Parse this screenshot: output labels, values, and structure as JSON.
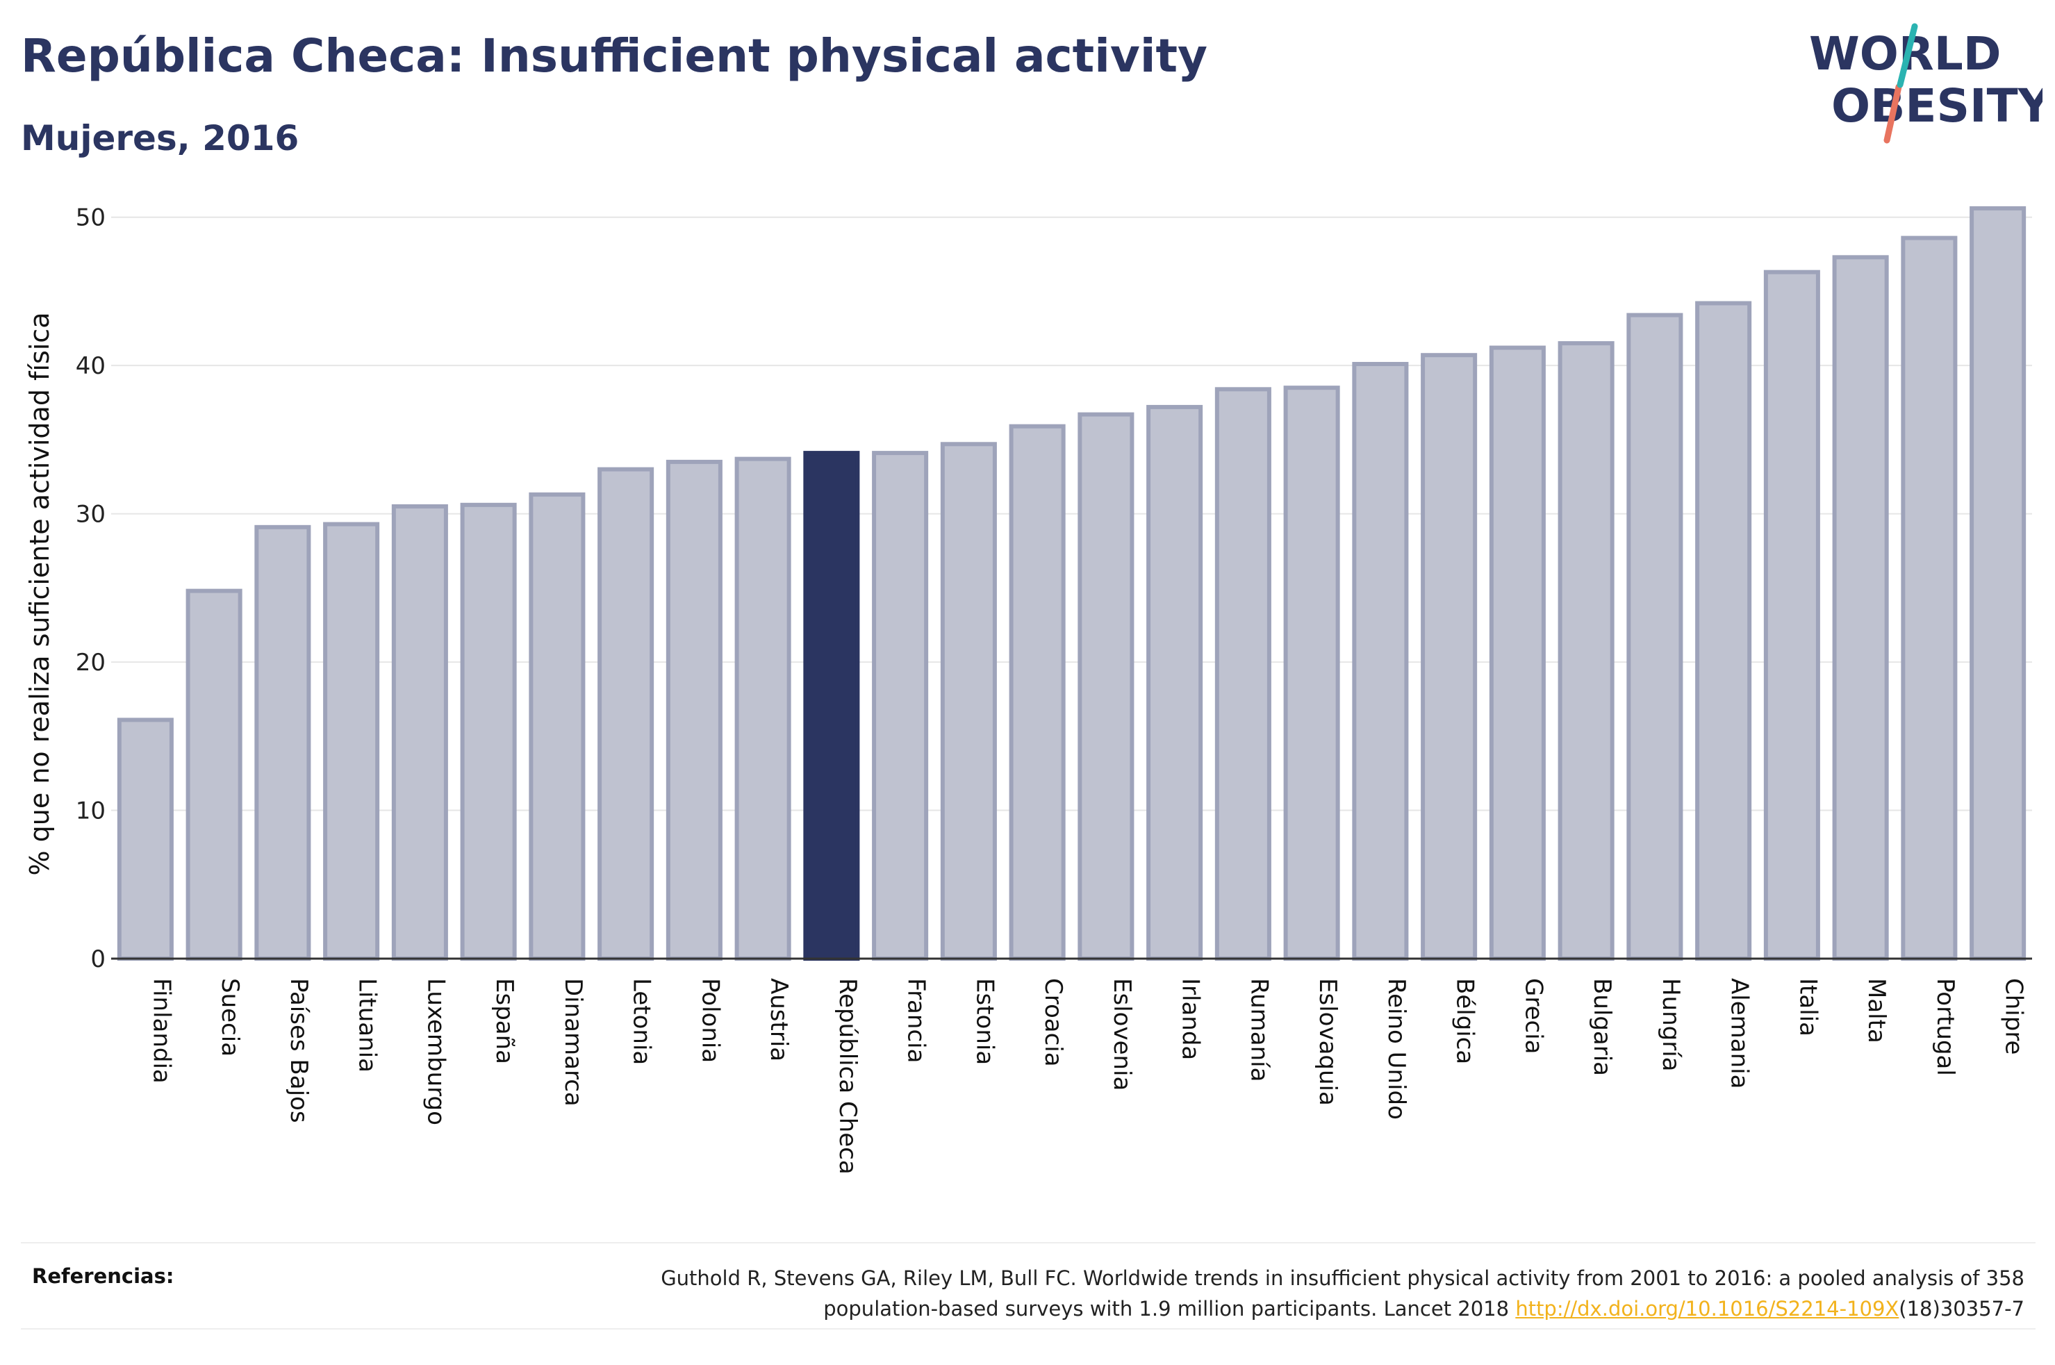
{
  "header": {
    "title": "República Checa: Insufficient physical activity",
    "subtitle": "Mujeres, 2016"
  },
  "logo": {
    "line1": "WORLD",
    "line2": "OBESITY",
    "accent_teal": "#2bb3b1",
    "accent_coral": "#e8745f"
  },
  "colors": {
    "bar_default": "#bfc2d0",
    "bar_border": "#9ea3ba",
    "bar_highlight": "#2b3561",
    "grid": "#e6e6e6",
    "text_primary": "#2b3561"
  },
  "chart_data": {
    "type": "bar",
    "ylabel": "% que no realiza suficiente actividad física",
    "xlabel": "",
    "ylim": [
      0,
      52
    ],
    "yticks": [
      0,
      10,
      20,
      30,
      40,
      50
    ],
    "grid": true,
    "highlight": "República Checa",
    "categories": [
      "Finlandia",
      "Suecia",
      "Países Bajos",
      "Lituania",
      "Luxemburgo",
      "España",
      "Dinamarca",
      "Letonia",
      "Polonia",
      "Austria",
      "República Checa",
      "Francia",
      "Estonia",
      "Croacia",
      "Eslovenia",
      "Irlanda",
      "Rumanía",
      "Eslovaquia",
      "Reino Unido",
      "Bélgica",
      "Grecia",
      "Bulgaria",
      "Hungría",
      "Alemania",
      "Italia",
      "Malta",
      "Portugal",
      "Chipre"
    ],
    "values": [
      16.1,
      24.8,
      29.1,
      29.3,
      30.5,
      30.6,
      31.3,
      33.0,
      33.5,
      33.7,
      34.1,
      34.1,
      34.7,
      35.9,
      36.7,
      37.2,
      38.4,
      38.5,
      40.1,
      40.7,
      41.2,
      41.5,
      43.4,
      44.2,
      46.3,
      47.3,
      48.6,
      50.6
    ]
  },
  "references": {
    "label": "Referencias:",
    "text_line1": "Guthold R, Stevens GA, Riley LM, Bull FC. Worldwide trends in insufficient physical activity from 2001 to 2016: a pooled analysis of 358",
    "text_line2_pre": "population-based surveys with 1.9 million participants. Lancet 2018 ",
    "link": "http://dx.doi.org/10.1016/S2214-109X",
    "text_line2_post": "(18)30357-7"
  }
}
